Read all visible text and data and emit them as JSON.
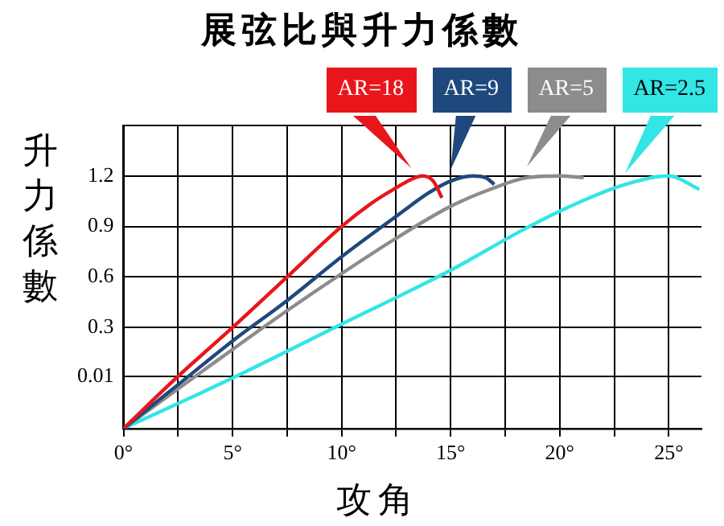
{
  "chart_data": {
    "type": "line",
    "title": "展弦比與升力係數",
    "xlabel": "攻角",
    "ylabel": "升力係數",
    "xlim": [
      0,
      26.5
    ],
    "xticks": [
      {
        "value": 0,
        "label": "0°"
      },
      {
        "value": 2.5,
        "label": null
      },
      {
        "value": 5,
        "label": "5°"
      },
      {
        "value": 7.5,
        "label": null
      },
      {
        "value": 10,
        "label": "10°"
      },
      {
        "value": 12.5,
        "label": null
      },
      {
        "value": 15,
        "label": "15°"
      },
      {
        "value": 17.5,
        "label": null
      },
      {
        "value": 20,
        "label": "20°"
      },
      {
        "value": 22.5,
        "label": null
      },
      {
        "value": 25,
        "label": "25°"
      }
    ],
    "ylim": [
      -0.3,
      1.5
    ],
    "yticks": [
      0.01,
      0.3,
      0.6,
      0.9,
      1.2,
      {
        "value": 1.5,
        "label": null
      }
    ],
    "grid": true,
    "legend": "top",
    "marker": "none",
    "line_style": "solid",
    "series": [
      {
        "name": "AR=18",
        "color": "#e8161b",
        "x": [
          0,
          2.5,
          5,
          7.5,
          10,
          11.5,
          12.5,
          13.2,
          13.7,
          14.2,
          14.6
        ],
        "values": [
          -0.3,
          0.01,
          0.3,
          0.6,
          0.9,
          1.05,
          1.13,
          1.18,
          1.2,
          1.17,
          1.07
        ]
      },
      {
        "name": "AR=9",
        "color": "#1f497d",
        "x": [
          0,
          2.5,
          5,
          7.5,
          10,
          12.5,
          14,
          15,
          16,
          16.6,
          17
        ],
        "values": [
          -0.3,
          -0.04,
          0.22,
          0.46,
          0.72,
          0.96,
          1.1,
          1.17,
          1.2,
          1.19,
          1.15
        ]
      },
      {
        "name": "AR=5",
        "color": "#8c8c8c",
        "x": [
          0,
          5,
          7.5,
          10,
          12.5,
          15,
          17,
          18.5,
          20,
          21.1
        ],
        "values": [
          -0.3,
          0.17,
          0.4,
          0.62,
          0.83,
          1.02,
          1.13,
          1.19,
          1.2,
          1.19
        ]
      },
      {
        "name": "AR=2.5",
        "color": "#33e5e5",
        "x": [
          0,
          5,
          10,
          15,
          18.6,
          21,
          23,
          25,
          26.4
        ],
        "values": [
          -0.3,
          0.0,
          0.32,
          0.64,
          0.9,
          1.05,
          1.15,
          1.2,
          1.12
        ]
      }
    ]
  }
}
